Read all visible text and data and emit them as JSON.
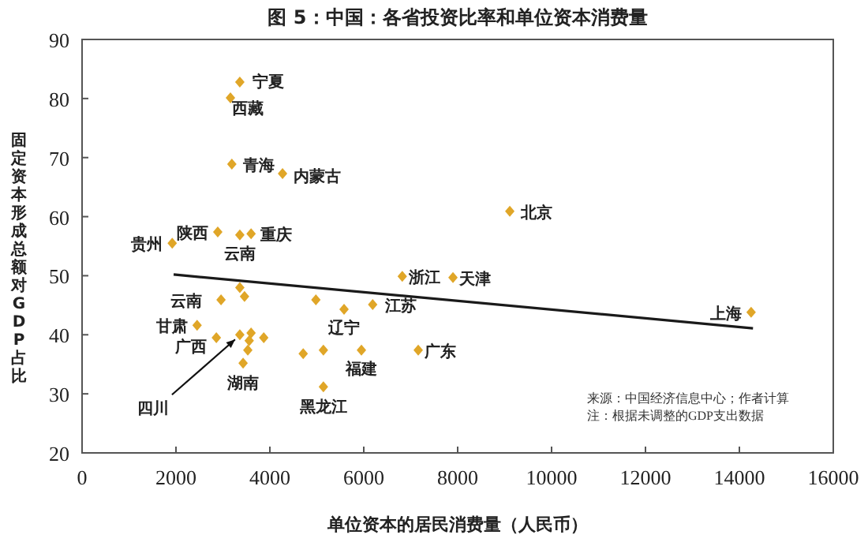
{
  "chart_data": {
    "type": "scatter",
    "title": "图 5：中国：各省投资比率和单位资本消费量",
    "xlabel": "单位资本的居民消费量（人民币）",
    "ylabel": "固定资本形成总额对GDP 占比",
    "xlim": [
      0,
      16000
    ],
    "xticks": [
      0,
      2000,
      4000,
      6000,
      8000,
      10000,
      12000,
      14000,
      16000
    ],
    "ylim": [
      20,
      90
    ],
    "yticks": [
      20,
      30,
      40,
      50,
      60,
      70,
      80,
      90
    ],
    "grid": false,
    "series": [
      {
        "marker": "diamond",
        "color": "#e0a628",
        "x": [
          3360,
          3160,
          3190,
          4270,
          9110,
          2890,
          3360,
          3600,
          1920,
          6820,
          7900,
          6190,
          5580,
          4980,
          2960,
          3360,
          3460,
          2450,
          2860,
          3360,
          3600,
          3560,
          3870,
          3530,
          3430,
          4710,
          5140,
          5950,
          7160,
          5140,
          14250
        ],
        "values": [
          82.8,
          80.1,
          68.9,
          67.3,
          60.9,
          57.4,
          56.9,
          57.1,
          55.5,
          49.9,
          49.7,
          45.1,
          44.3,
          45.9,
          45.9,
          48.0,
          46.5,
          41.6,
          39.5,
          40.0,
          40.3,
          39.0,
          39.5,
          37.4,
          35.2,
          36.8,
          37.4,
          37.4,
          37.4,
          31.2,
          43.8
        ]
      },
      {
        "type": "line",
        "color": "#1a1a1a",
        "x": [
          1950,
          14290
        ],
        "values": [
          50.2,
          41.1
        ]
      }
    ],
    "annotations": [
      {
        "text": "宁夏",
        "x": 3360,
        "y": 82.8
      },
      {
        "text": "西藏",
        "x": 3160,
        "y": 80.1
      },
      {
        "text": "青海",
        "x": 3190,
        "y": 68.9
      },
      {
        "text": "内蒙古",
        "x": 4270,
        "y": 67.3
      },
      {
        "text": "北京",
        "x": 9110,
        "y": 60.9
      },
      {
        "text": "陕西",
        "x": 2890,
        "y": 57.4
      },
      {
        "text": "云南",
        "x": 3360,
        "y": 56.9
      },
      {
        "text": "重庆",
        "x": 3600,
        "y": 57.1
      },
      {
        "text": "贵州",
        "x": 1920,
        "y": 55.5
      },
      {
        "text": "浙江",
        "x": 6820,
        "y": 49.9
      },
      {
        "text": "天津",
        "x": 7900,
        "y": 49.7
      },
      {
        "text": "江苏",
        "x": 6190,
        "y": 45.1
      },
      {
        "text": "辽宁",
        "x": 5580,
        "y": 44.3
      },
      {
        "text": "云南",
        "x": 2960,
        "y": 45.9
      },
      {
        "text": "甘肃",
        "x": 2450,
        "y": 41.6
      },
      {
        "text": "广西",
        "x": 2860,
        "y": 39.5
      },
      {
        "text": "湖南",
        "x": 3430,
        "y": 35.2
      },
      {
        "text": "福建",
        "x": 5950,
        "y": 37.4
      },
      {
        "text": "广东",
        "x": 7160,
        "y": 37.4
      },
      {
        "text": "黑龙江",
        "x": 5140,
        "y": 31.2
      },
      {
        "text": "上海",
        "x": 14250,
        "y": 43.8
      },
      {
        "text": "四川",
        "x": 3360,
        "y": 40.0
      },
      "来源：中国经济信息中心；作者计算",
      "注：根据未调整的GDP支出数据"
    ]
  }
}
